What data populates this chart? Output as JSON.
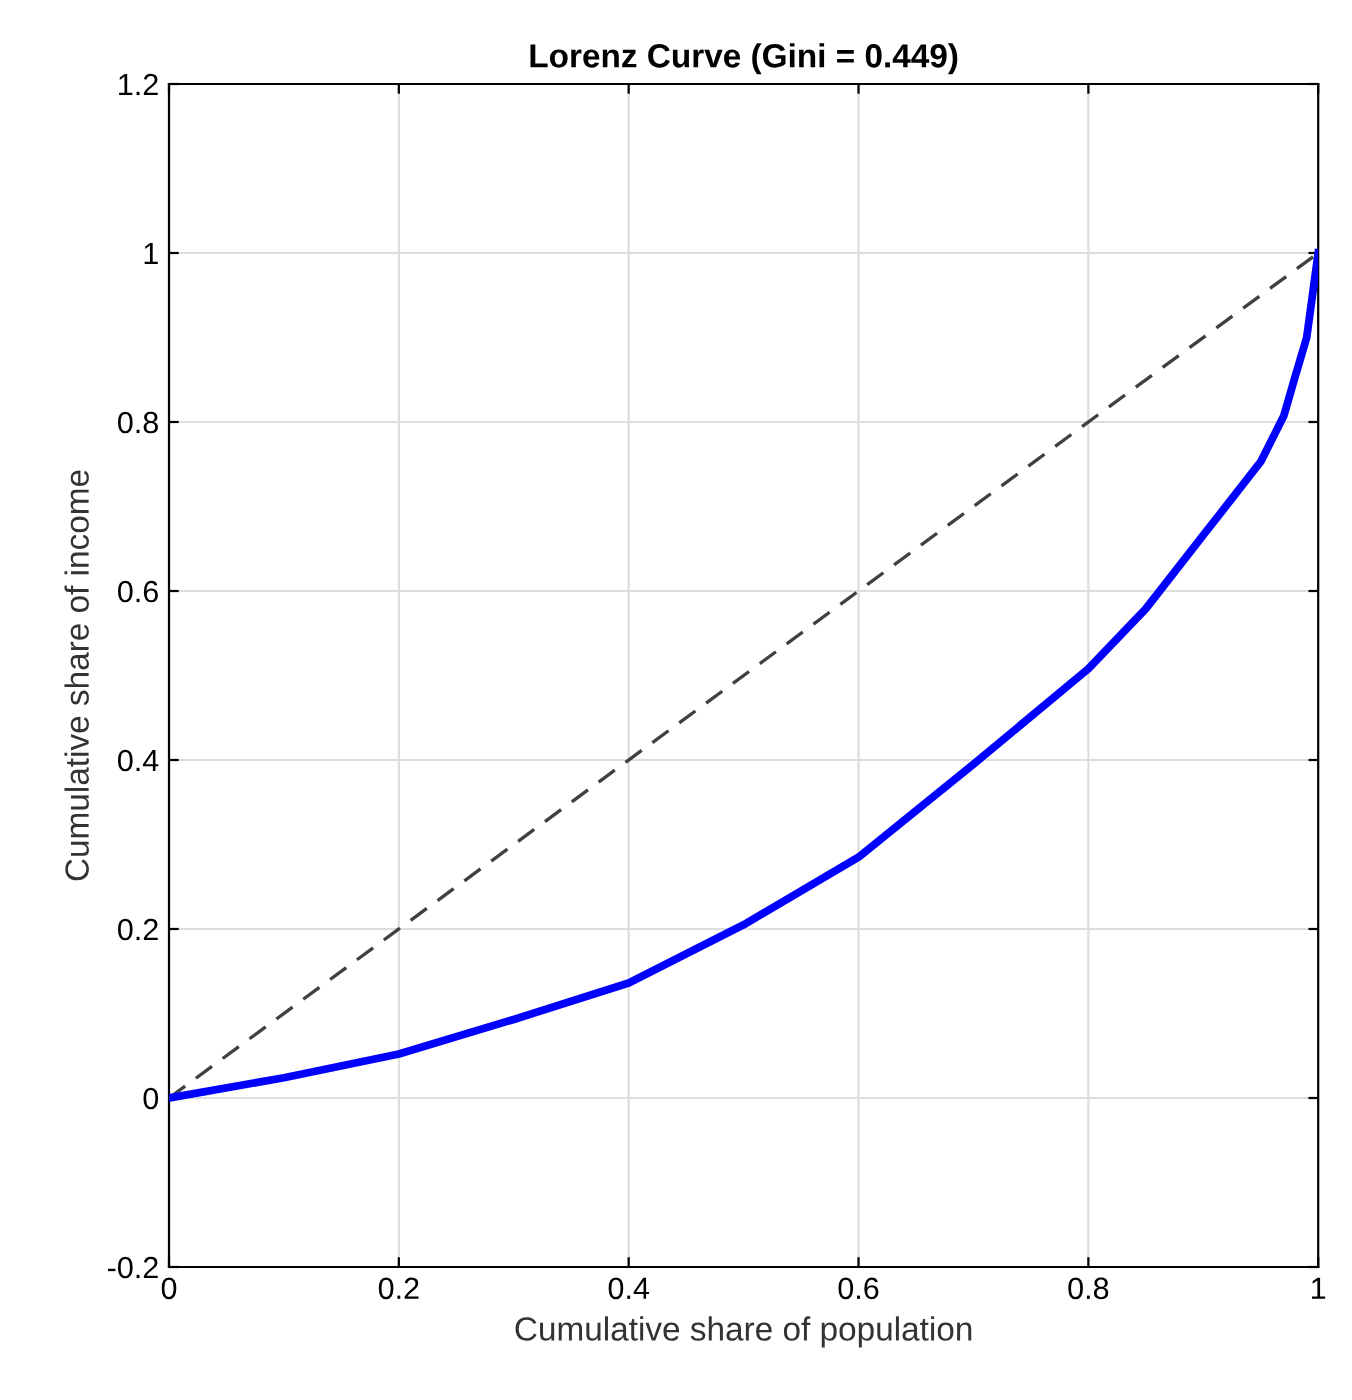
{
  "chart_data": {
    "type": "line",
    "title": "Lorenz Curve (Gini = 0.449)",
    "xlabel": "Cumulative share of population",
    "ylabel": "Cumulative share of income",
    "xlim": [
      0,
      1
    ],
    "ylim": [
      -0.2,
      1.2
    ],
    "xticks": [
      0,
      0.2,
      0.4,
      0.6,
      0.8,
      1
    ],
    "yticks": [
      -0.2,
      0,
      0.2,
      0.4,
      0.6,
      0.8,
      1,
      1.2
    ],
    "grid": true,
    "marker": "none",
    "series": [
      {
        "color": "#404040",
        "line_style": "dashed",
        "x": [
          0,
          1
        ],
        "values": [
          0,
          1
        ]
      },
      {
        "color": "#0000ff",
        "line_style": "solid",
        "x": [
          0,
          0.1,
          0.2,
          0.3,
          0.4,
          0.5,
          0.6,
          0.7,
          0.8,
          0.85,
          0.9,
          0.95,
          0.97,
          0.98,
          0.99,
          1
        ],
        "values": [
          0,
          0.024,
          0.052,
          0.093,
          0.136,
          0.205,
          0.285,
          0.395,
          0.508,
          0.579,
          0.666,
          0.753,
          0.807,
          0.854,
          0.9,
          1
        ]
      }
    ]
  }
}
